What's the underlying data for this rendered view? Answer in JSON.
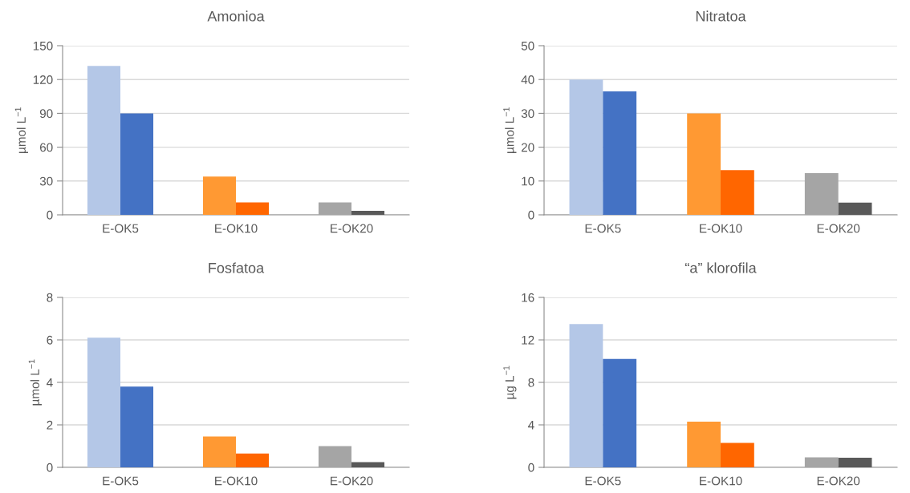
{
  "chart_data": [
    {
      "type": "bar",
      "title": "Amonioa",
      "ylabel": "µmol L$^{−1}$",
      "categories": [
        "E-OK5",
        "E-OK10",
        "E-OK20"
      ],
      "ylim": [
        0,
        150
      ],
      "yticks": [
        0,
        30,
        60,
        90,
        120,
        150
      ],
      "grid": "y",
      "series": [
        {
          "colors": [
            "#b4c7e7",
            "#ff9933",
            "#a5a5a5"
          ],
          "values": [
            132,
            34,
            11
          ]
        },
        {
          "colors": [
            "#4472c4",
            "#ff6600",
            "#595959"
          ],
          "values": [
            90,
            11,
            3.5
          ]
        }
      ]
    },
    {
      "type": "bar",
      "title": "Nitratoa",
      "ylabel": "µmol L$^{−1}$",
      "categories": [
        "E-OK5",
        "E-OK10",
        "E-OK20"
      ],
      "ylim": [
        0,
        50
      ],
      "yticks": [
        0,
        10,
        20,
        30,
        40,
        50
      ],
      "grid": "y",
      "series": [
        {
          "colors": [
            "#b4c7e7",
            "#ff9933",
            "#a5a5a5"
          ],
          "values": [
            40,
            30,
            12.3
          ]
        },
        {
          "colors": [
            "#4472c4",
            "#ff6600",
            "#595959"
          ],
          "values": [
            36.5,
            13.2,
            3.6
          ]
        }
      ]
    },
    {
      "type": "bar",
      "title": "Fosfatoa",
      "ylabel": "µmol L$^{−1}$",
      "categories": [
        "E-OK5",
        "E-OK10",
        "E-OK20"
      ],
      "ylim": [
        0,
        8
      ],
      "yticks": [
        0,
        2,
        4,
        6,
        8
      ],
      "grid": "y",
      "series": [
        {
          "colors": [
            "#b4c7e7",
            "#ff9933",
            "#a5a5a5"
          ],
          "values": [
            6.1,
            1.45,
            1.0
          ]
        },
        {
          "colors": [
            "#4472c4",
            "#ff6600",
            "#595959"
          ],
          "values": [
            3.8,
            0.65,
            0.25
          ]
        }
      ]
    },
    {
      "type": "bar",
      "title": "“a” klorofila",
      "ylabel": "µg L$^{−1}$",
      "categories": [
        "E-OK5",
        "E-OK10",
        "E-OK20"
      ],
      "ylim": [
        0,
        16
      ],
      "yticks": [
        0,
        4,
        8,
        12,
        16
      ],
      "grid": "y",
      "series": [
        {
          "colors": [
            "#b4c7e7",
            "#ff9933",
            "#a5a5a5"
          ],
          "values": [
            13.5,
            4.3,
            0.95
          ]
        },
        {
          "colors": [
            "#4472c4",
            "#ff6600",
            "#595959"
          ],
          "values": [
            10.2,
            2.3,
            0.9
          ]
        }
      ]
    }
  ]
}
